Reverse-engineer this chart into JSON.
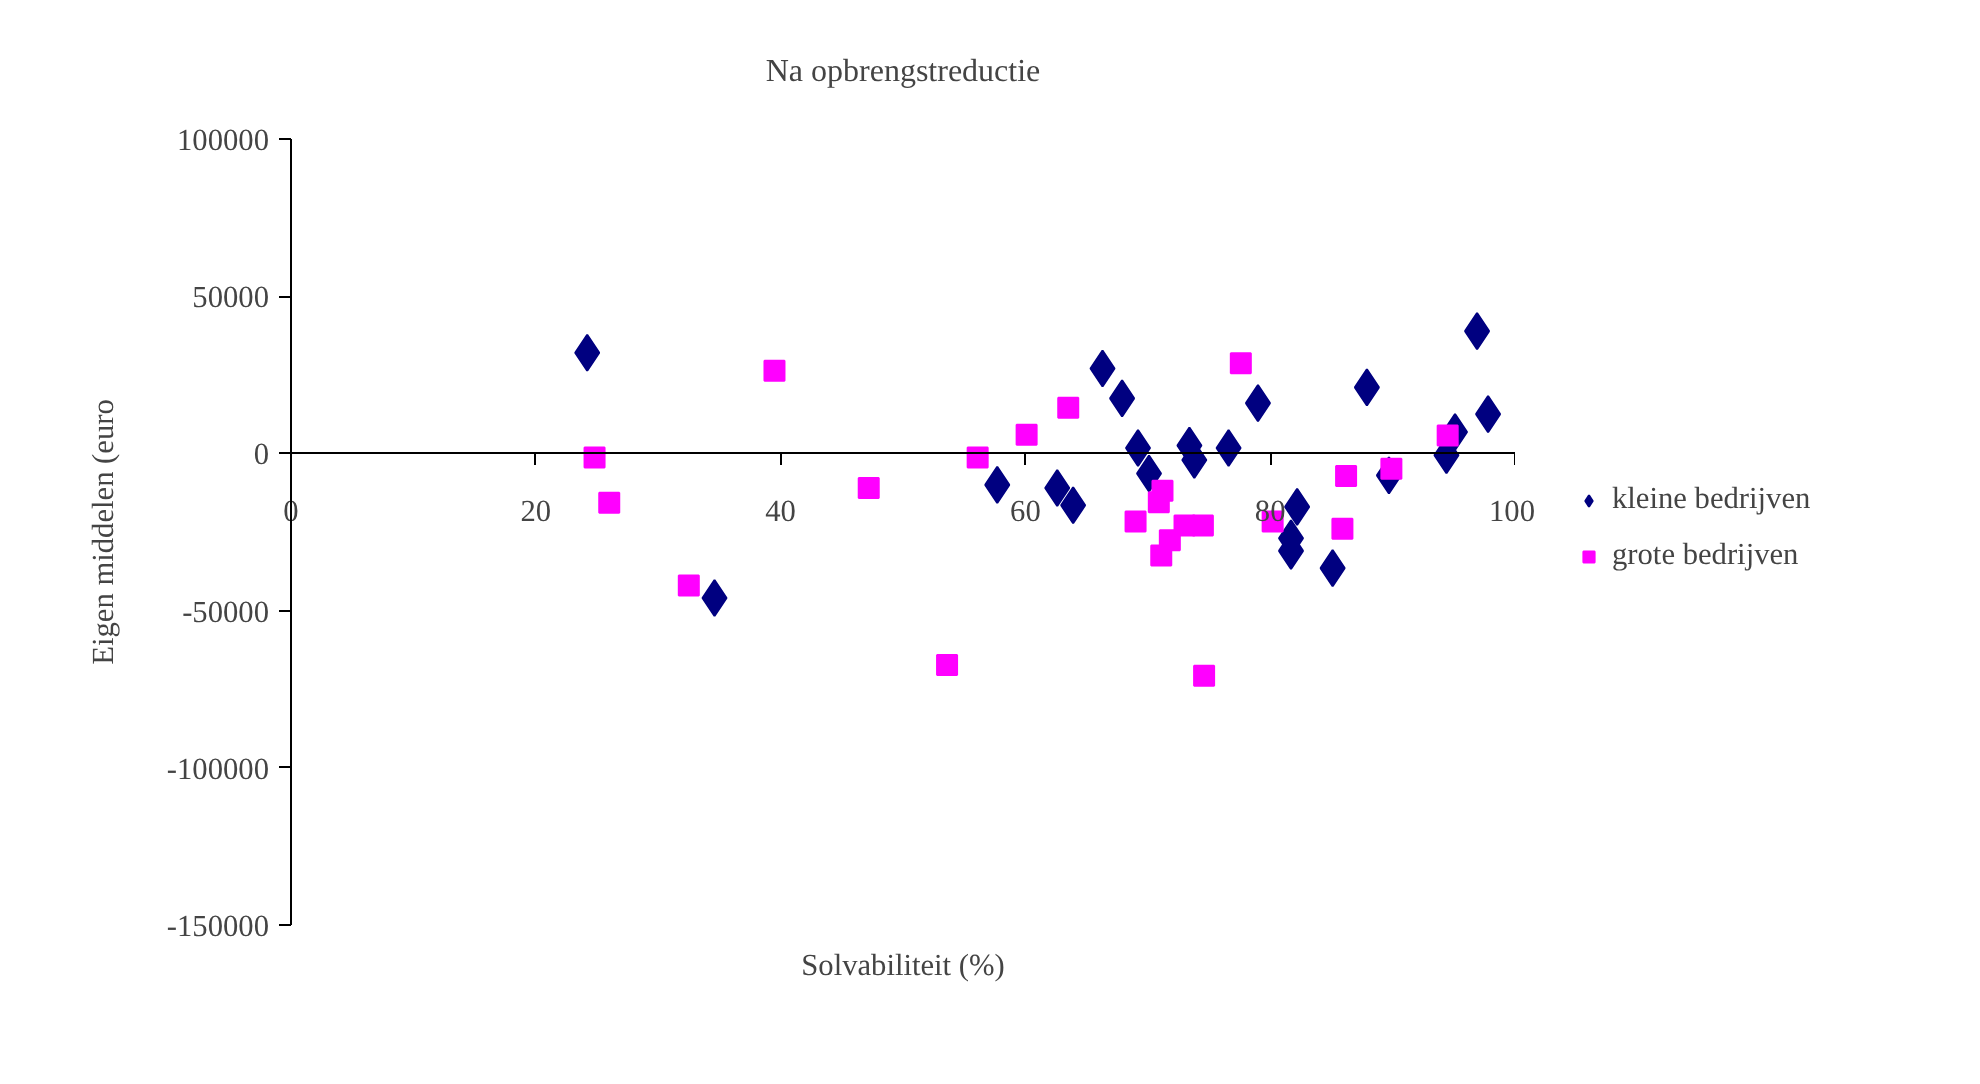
{
  "chart_data": {
    "type": "scatter",
    "title": "Na opbrengstreductie",
    "xlabel": "Solvabiliteit (%)",
    "ylabel": "Eigen middelen (euro",
    "xlim": [
      0,
      100
    ],
    "xticks": [
      0,
      20,
      40,
      60,
      80,
      100
    ],
    "ylim": [
      -150000,
      100000
    ],
    "yticks": [
      -150000,
      -100000,
      -50000,
      0,
      50000,
      100000
    ],
    "grid": false,
    "legend": "right",
    "series": [
      {
        "name": "kleine bedrijven",
        "color": "#000080",
        "marker": "diamond",
        "x": [
          24.2,
          34.6,
          57.7,
          62.6,
          63.9,
          66.3,
          67.9,
          69.2,
          70.1,
          73.4,
          73.8,
          76.6,
          79.0,
          82.2,
          81.7,
          81.7,
          85.1,
          87.9,
          89.7,
          94.4,
          95.1,
          96.9,
          97.8
        ],
        "values": [
          32000,
          -46000,
          -10000,
          -11000,
          -16500,
          27000,
          17500,
          1700,
          -6400,
          2500,
          -2100,
          1700,
          16000,
          -17000,
          -27000,
          -31000,
          -36500,
          21000,
          -7000,
          -600,
          6800,
          38900,
          12500
        ]
      },
      {
        "name": "grote bedrijven",
        "color": "#ff00ff",
        "marker": "square",
        "x": [
          24.8,
          26.0,
          32.5,
          39.5,
          47.2,
          53.6,
          56.1,
          60.1,
          63.5,
          69.0,
          71.2,
          70.9,
          71.8,
          71.1,
          73.0,
          74.5,
          74.6,
          77.6,
          80.2,
          86.2,
          85.9,
          89.9,
          94.5
        ],
        "values": [
          -1300,
          -15700,
          -42000,
          26300,
          -11000,
          -67300,
          -1300,
          5900,
          14500,
          -21700,
          -11900,
          -15500,
          -27600,
          -32500,
          -22900,
          -22900,
          -70700,
          28700,
          -21700,
          -7200,
          -24000,
          -4900,
          5700
        ]
      }
    ]
  }
}
